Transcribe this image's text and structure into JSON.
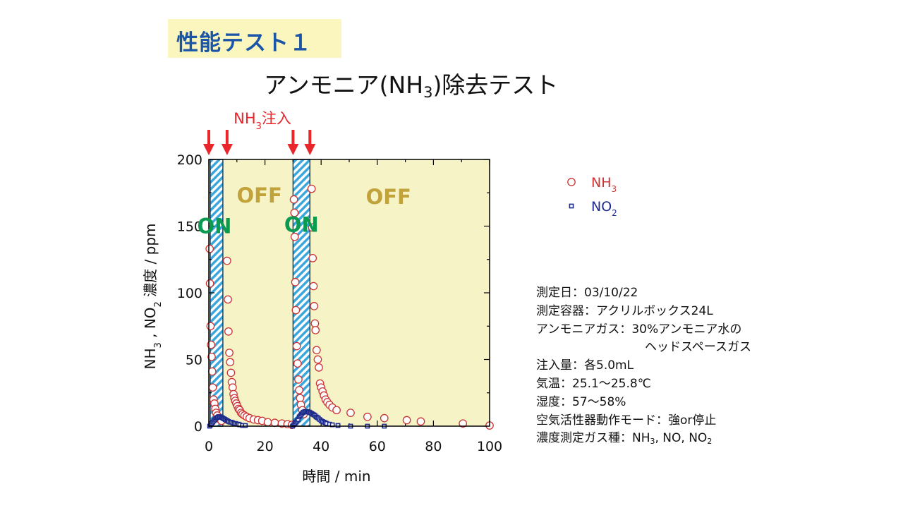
{
  "slide": {
    "tag": "性能テスト１",
    "title_part1": "アンモニア(NH",
    "title_sub": "3",
    "title_part2": ")除去テスト"
  },
  "chart_data": {
    "type": "scatter",
    "title": "",
    "xlabel": "時間 / min",
    "ylabel_parts": [
      "NH",
      "3",
      " , NO",
      "2",
      " 濃度 / ppm"
    ],
    "xlim": [
      0,
      100
    ],
    "ylim": [
      0,
      200
    ],
    "x_ticks": [
      "0",
      "20",
      "40",
      "60",
      "80",
      "100"
    ],
    "y_ticks": [
      "0",
      "50",
      "100",
      "150",
      "200"
    ],
    "background_color": "#f6f3c6",
    "injection_label": {
      "main": "NH",
      "sub": "3",
      "rest": "注入"
    },
    "injection_times": [
      0,
      6.5,
      30,
      36
    ],
    "on_periods": [
      [
        0.5,
        5
      ],
      [
        30,
        36
      ]
    ],
    "region_labels": [
      {
        "text": "ON",
        "x": 2,
        "y": 150,
        "color": "#0a9a50"
      },
      {
        "text": "OFF",
        "x": 18,
        "y": 173,
        "color": "#c2a23a"
      },
      {
        "text": "ON",
        "x": 33,
        "y": 151,
        "color": "#0a9a50"
      },
      {
        "text": "OFF",
        "x": 64,
        "y": 172,
        "color": "#c2a23a"
      }
    ],
    "legend": {
      "position": "right",
      "entries": [
        {
          "name_main": "NH",
          "name_sub": "3"
        },
        {
          "name_main": "NO",
          "name_sub": "2"
        }
      ]
    },
    "series": [
      {
        "name": "NH3",
        "marker": "circle",
        "color": "#cc3333",
        "points": [
          [
            0.3,
            133
          ],
          [
            0.4,
            107
          ],
          [
            0.6,
            75
          ],
          [
            0.8,
            61
          ],
          [
            1.0,
            52
          ],
          [
            1.2,
            41
          ],
          [
            1.4,
            29
          ],
          [
            1.7,
            20
          ],
          [
            2.0,
            17
          ],
          [
            2.3,
            13
          ],
          [
            2.6,
            10
          ],
          [
            3.0,
            8
          ],
          [
            3.5,
            6
          ],
          [
            4.0,
            5
          ],
          [
            4.5,
            4
          ],
          [
            6.5,
            124
          ],
          [
            6.8,
            95
          ],
          [
            7.0,
            71
          ],
          [
            7.3,
            55
          ],
          [
            7.6,
            48
          ],
          [
            7.9,
            40
          ],
          [
            8.2,
            33
          ],
          [
            8.5,
            29
          ],
          [
            8.8,
            24
          ],
          [
            9.1,
            21
          ],
          [
            9.4,
            19
          ],
          [
            9.8,
            17
          ],
          [
            10.2,
            15
          ],
          [
            10.6,
            13
          ],
          [
            11.0,
            12
          ],
          [
            11.5,
            10
          ],
          [
            12.0,
            9
          ],
          [
            12.7,
            8
          ],
          [
            13.5,
            7
          ],
          [
            14.5,
            6
          ],
          [
            16,
            5
          ],
          [
            17.5,
            4.5
          ],
          [
            19,
            4
          ],
          [
            21,
            3
          ],
          [
            23.5,
            2.5
          ],
          [
            26,
            2
          ],
          [
            28,
            1.5
          ],
          [
            29.6,
            1
          ],
          [
            30.3,
            170
          ],
          [
            30.5,
            160
          ],
          [
            30.6,
            142
          ],
          [
            30.8,
            108
          ],
          [
            31.0,
            87
          ],
          [
            31.3,
            60
          ],
          [
            31.6,
            47
          ],
          [
            31.9,
            35
          ],
          [
            32.2,
            27
          ],
          [
            32.5,
            21
          ],
          [
            32.8,
            16
          ],
          [
            33.3,
            12
          ],
          [
            33.8,
            9
          ],
          [
            36.6,
            178
          ],
          [
            36.8,
            149
          ],
          [
            37.0,
            126
          ],
          [
            37.3,
            105
          ],
          [
            37.5,
            90
          ],
          [
            37.8,
            77
          ],
          [
            38.0,
            72
          ],
          [
            38.4,
            57
          ],
          [
            38.8,
            50
          ],
          [
            39.2,
            44
          ],
          [
            39.6,
            32
          ],
          [
            40.0,
            29
          ],
          [
            40.5,
            26
          ],
          [
            41.0,
            23
          ],
          [
            41.6,
            20
          ],
          [
            42.2,
            18
          ],
          [
            43.0,
            16
          ],
          [
            44.0,
            14
          ],
          [
            45.5,
            12
          ],
          [
            50.5,
            10
          ],
          [
            56.5,
            7
          ],
          [
            62.5,
            6
          ],
          [
            70.5,
            4.5
          ],
          [
            75.5,
            3.5
          ],
          [
            90.5,
            2
          ],
          [
            100,
            0.5
          ]
        ]
      },
      {
        "name": "NO2",
        "marker": "square",
        "color": "#1e2d8c",
        "points": [
          [
            0.3,
            0
          ],
          [
            0.7,
            1
          ],
          [
            1.0,
            2
          ],
          [
            1.4,
            3
          ],
          [
            1.8,
            4
          ],
          [
            2.2,
            5
          ],
          [
            2.6,
            6
          ],
          [
            3.0,
            6.5
          ],
          [
            3.4,
            7
          ],
          [
            3.8,
            7
          ],
          [
            4.2,
            7
          ],
          [
            4.6,
            6.5
          ],
          [
            5.0,
            6
          ],
          [
            5.4,
            5.5
          ],
          [
            5.8,
            5
          ],
          [
            6.2,
            4.5
          ],
          [
            6.6,
            4
          ],
          [
            7.0,
            3.5
          ],
          [
            7.5,
            3
          ],
          [
            8.0,
            3
          ],
          [
            8.5,
            2.5
          ],
          [
            9.0,
            2
          ],
          [
            9.5,
            2
          ],
          [
            10.0,
            1.5
          ],
          [
            10.5,
            1.5
          ],
          [
            11.0,
            1
          ],
          [
            12.0,
            0.5
          ],
          [
            13.0,
            0.5
          ],
          [
            29.8,
            0
          ],
          [
            30.2,
            1
          ],
          [
            30.6,
            2
          ],
          [
            31.0,
            3
          ],
          [
            31.4,
            4
          ],
          [
            31.8,
            5
          ],
          [
            32.2,
            7
          ],
          [
            32.6,
            8
          ],
          [
            33.0,
            9
          ],
          [
            33.4,
            10
          ],
          [
            33.8,
            10.5
          ],
          [
            34.2,
            11
          ],
          [
            34.6,
            11
          ],
          [
            35.0,
            11
          ],
          [
            35.4,
            10.5
          ],
          [
            35.8,
            10.5
          ],
          [
            36.2,
            10
          ],
          [
            36.6,
            9.5
          ],
          [
            37.0,
            9
          ],
          [
            37.4,
            8.5
          ],
          [
            37.8,
            8
          ],
          [
            38.2,
            7
          ],
          [
            38.6,
            6.5
          ],
          [
            39.0,
            6
          ],
          [
            39.5,
            5
          ],
          [
            40.0,
            4
          ],
          [
            40.5,
            3.5
          ],
          [
            41.0,
            3
          ],
          [
            41.5,
            2.5
          ],
          [
            42.0,
            2
          ],
          [
            43.0,
            1.5
          ],
          [
            44.0,
            1
          ],
          [
            46.0,
            0.5
          ],
          [
            50.5,
            0
          ],
          [
            56.5,
            0
          ],
          [
            62.5,
            0
          ]
        ]
      }
    ]
  },
  "info": {
    "line1": "測定日：03/10/22",
    "line2": "測定容器：アクリルボックス24L",
    "line3": "アンモニアガス：30%アンモニア水の",
    "line4": "ヘッドスペースガス",
    "line5": "注入量：各5.0mL",
    "line6": "気温：25.1～25.8℃",
    "line7": "湿度：57～58%",
    "line8": "空気活性器動作モード：強or停止",
    "line9_a": "濃度測定ガス種：NH",
    "line9_b": "3",
    "line9_c": ", NO, NO",
    "line9_d": "2"
  }
}
